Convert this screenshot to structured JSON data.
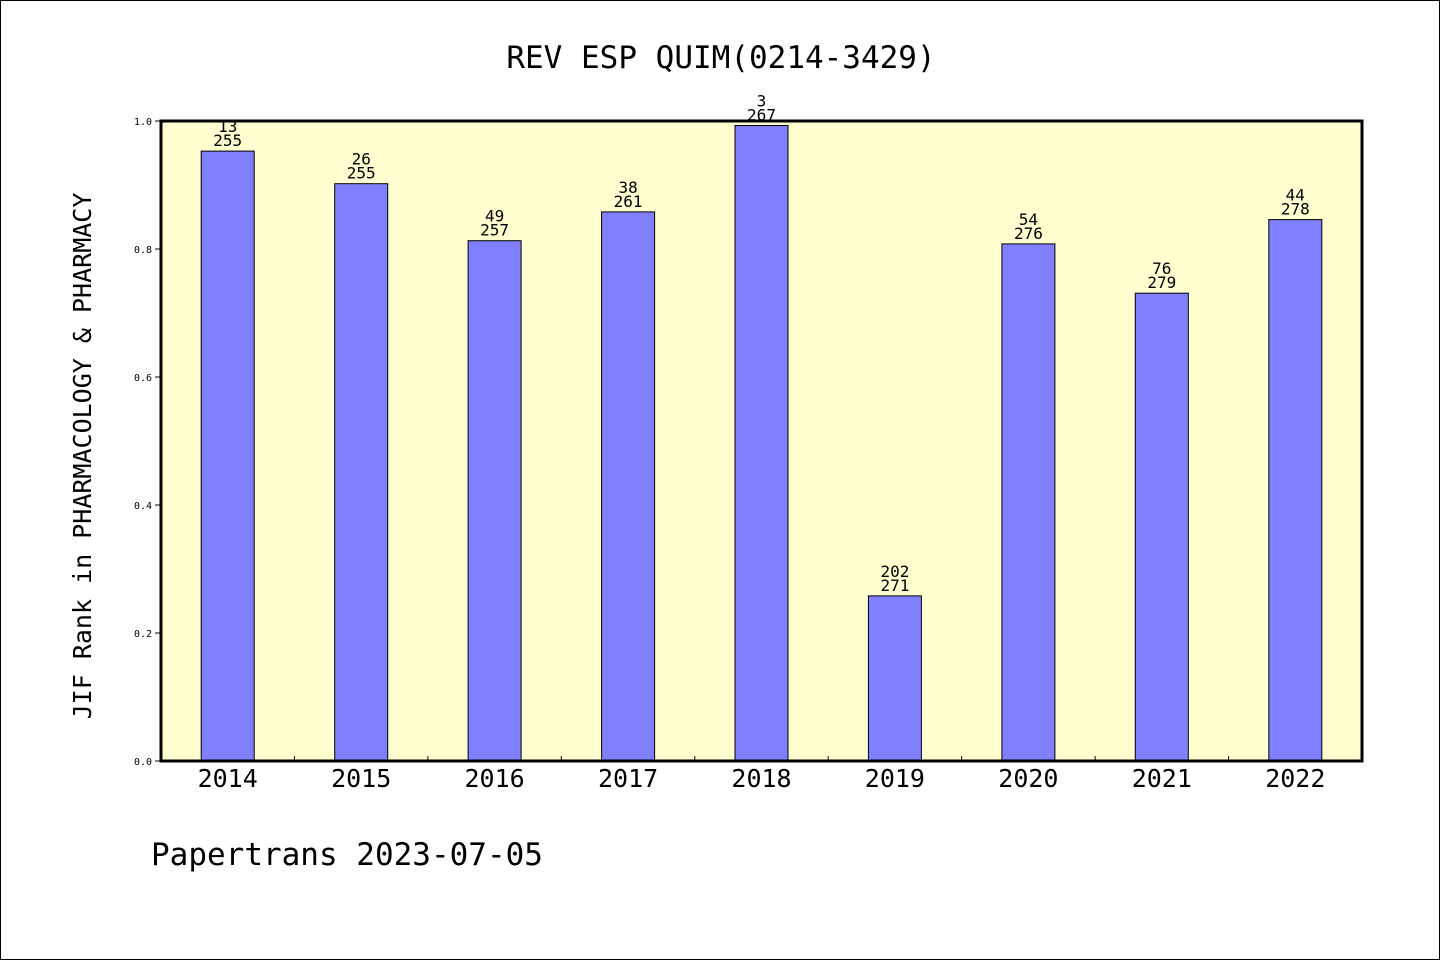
{
  "chart_data": {
    "type": "bar",
    "title": "REV ESP QUIM(0214-3429)",
    "xlabel": "",
    "ylabel": "JIF Rank in PHARMACOLOGY & PHARMACY",
    "ylim": [
      0,
      1.0
    ],
    "yticks": [
      "0.0",
      "0.2",
      "0.4",
      "0.6",
      "0.8",
      "1.0"
    ],
    "categories": [
      "2014",
      "2015",
      "2016",
      "2017",
      "2018",
      "2019",
      "2020",
      "2021",
      "2022"
    ],
    "values": [
      0.953,
      0.902,
      0.813,
      0.858,
      0.993,
      0.258,
      0.808,
      0.731,
      0.846
    ],
    "rank": [
      "13",
      "26",
      "49",
      "38",
      "3",
      "202",
      "54",
      "76",
      "44"
    ],
    "total": [
      "255",
      "255",
      "257",
      "261",
      "267",
      "271",
      "276",
      "279",
      "278"
    ],
    "grid": false,
    "legend": "none",
    "colors": {
      "plot_background": "#ffffd0",
      "bar_fill": "#8080ff",
      "bar_stroke": "#000000",
      "axis": "#000000"
    }
  },
  "footer": {
    "text": "Papertrans 2023-07-05"
  }
}
